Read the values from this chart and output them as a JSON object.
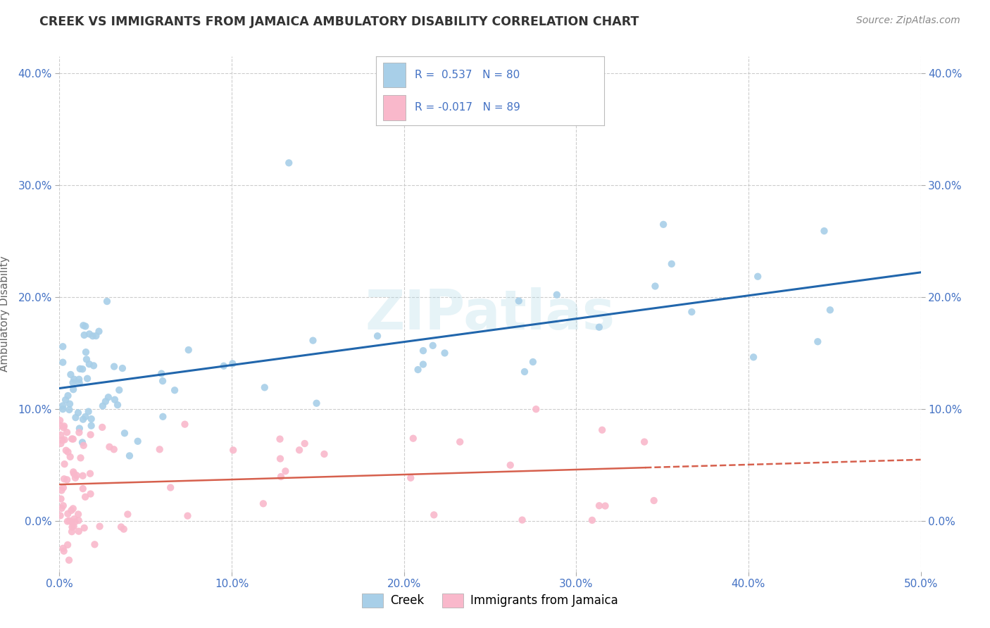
{
  "title": "CREEK VS IMMIGRANTS FROM JAMAICA AMBULATORY DISABILITY CORRELATION CHART",
  "source": "Source: ZipAtlas.com",
  "ylabel": "Ambulatory Disability",
  "xlim": [
    0.0,
    0.5
  ],
  "ylim": [
    -0.045,
    0.415
  ],
  "xticks": [
    0.0,
    0.1,
    0.2,
    0.3,
    0.4,
    0.5
  ],
  "yticks": [
    0.0,
    0.1,
    0.2,
    0.3,
    0.4
  ],
  "xtick_labels": [
    "0.0%",
    "10.0%",
    "20.0%",
    "30.0%",
    "40.0%",
    "50.0%"
  ],
  "ytick_labels": [
    "0.0%",
    "10.0%",
    "20.0%",
    "30.0%",
    "40.0%"
  ],
  "creek_color": "#a8cfe8",
  "jamaica_color": "#f9b8cb",
  "creek_line_color": "#2166ac",
  "jamaica_line_color": "#d6604d",
  "creek_R": 0.537,
  "creek_N": 80,
  "jamaica_R": -0.017,
  "jamaica_N": 89,
  "background_color": "#ffffff",
  "grid_color": "#cccccc",
  "watermark": "ZIPatlas",
  "legend_creek_label": "Creek",
  "legend_jamaica_label": "Immigrants from Jamaica",
  "title_color": "#333333",
  "source_color": "#888888",
  "tick_color": "#4472c4",
  "ylabel_color": "#666666"
}
